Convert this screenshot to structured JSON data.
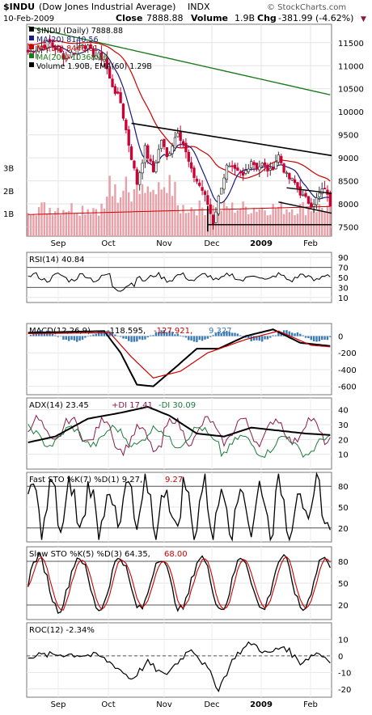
{
  "header": {
    "symbol": "$INDU",
    "name": "(Dow Jones Industrial Average)",
    "exchange": "INDX",
    "date": "10-Feb-2009",
    "close_label": "Close",
    "close": "7888.88",
    "volume_label": "Volume",
    "volume": "1.9B",
    "chg_label": "Chg",
    "chg": "-381.99 (-4.62%)",
    "chg_arrow": "▼",
    "brand": "© StockCharts.com"
  },
  "colors": {
    "up": "#ffffff",
    "down": "#cc0033",
    "ma20": "#1a1a80",
    "ma50": "#cc0000",
    "ma200": "#1b7a1b",
    "volume": "#e8a0a8",
    "macd_hist": "#3a7ab8",
    "signal": "#cc0000",
    "plus_di": "#8b1a4a",
    "minus_di": "#1b7a3a"
  },
  "chart_data": [
    {
      "type": "candlestick",
      "title": "$INDU (Daily) 7888.88",
      "legend": [
        {
          "name": "$INDU (Daily)",
          "value": "7888.88"
        },
        {
          "name": "MA(20)",
          "value": "8140.56"
        },
        {
          "name": "MA(50)",
          "value": "8446.61"
        },
        {
          "name": "MA(200)",
          "value": "10368.26"
        },
        {
          "name": "Volume 1.90B, EMA(60) 1.29B",
          "value": ""
        }
      ],
      "yticks": [
        "11500",
        "11000",
        "10500",
        "10000",
        "9500",
        "9000",
        "8500",
        "8000",
        "7500"
      ],
      "volume_ticks": [
        "3B",
        "2B",
        "1B"
      ],
      "xticks": [
        "Sep",
        "Oct",
        "Nov",
        "Dec",
        "2009",
        "Feb"
      ],
      "ylim": [
        7300,
        11900
      ],
      "key_points": {
        "ma200_start": 11850,
        "ma200_end": 10368.26,
        "resistance_start": 9750,
        "resistance_end": 9050,
        "support_level": 7550,
        "channel_start": 8350,
        "channel_end": 7800
      }
    },
    {
      "type": "line",
      "title": "RSI(14) 40.84",
      "yticks": [
        "90",
        "70",
        "50",
        "30",
        "10"
      ],
      "ylim": [
        0,
        100
      ],
      "last": 40.84
    },
    {
      "type": "line",
      "title": "MACD(12,26,9)",
      "values_label": [
        "-118.595",
        "-127.921",
        "9.327"
      ],
      "yticks": [
        "0",
        "-200",
        "-400",
        "-600"
      ],
      "ylim": [
        -700,
        150
      ]
    },
    {
      "type": "line",
      "title": "ADX(14) 23.45",
      "plus_di_label": "+DI 17.41",
      "minus_di_label": "-DI 30.09",
      "yticks": [
        "40",
        "30",
        "20",
        "10"
      ],
      "ylim": [
        0,
        48
      ]
    },
    {
      "type": "line",
      "title": "Fast STO %K(7) %D(1) 9.27,",
      "d_value": "9.27",
      "yticks": [
        "80",
        "50",
        "20"
      ],
      "ylim": [
        0,
        100
      ]
    },
    {
      "type": "line",
      "title": "Slow STO %K(5) %D(3) 64.35,",
      "d_value": "68.00",
      "yticks": [
        "80",
        "50",
        "20"
      ],
      "ylim": [
        0,
        100
      ]
    },
    {
      "type": "line",
      "title": "ROC(12) -2.34%",
      "yticks": [
        "10",
        "0",
        "-10",
        "-20"
      ],
      "ylim": [
        -25,
        20
      ]
    }
  ]
}
